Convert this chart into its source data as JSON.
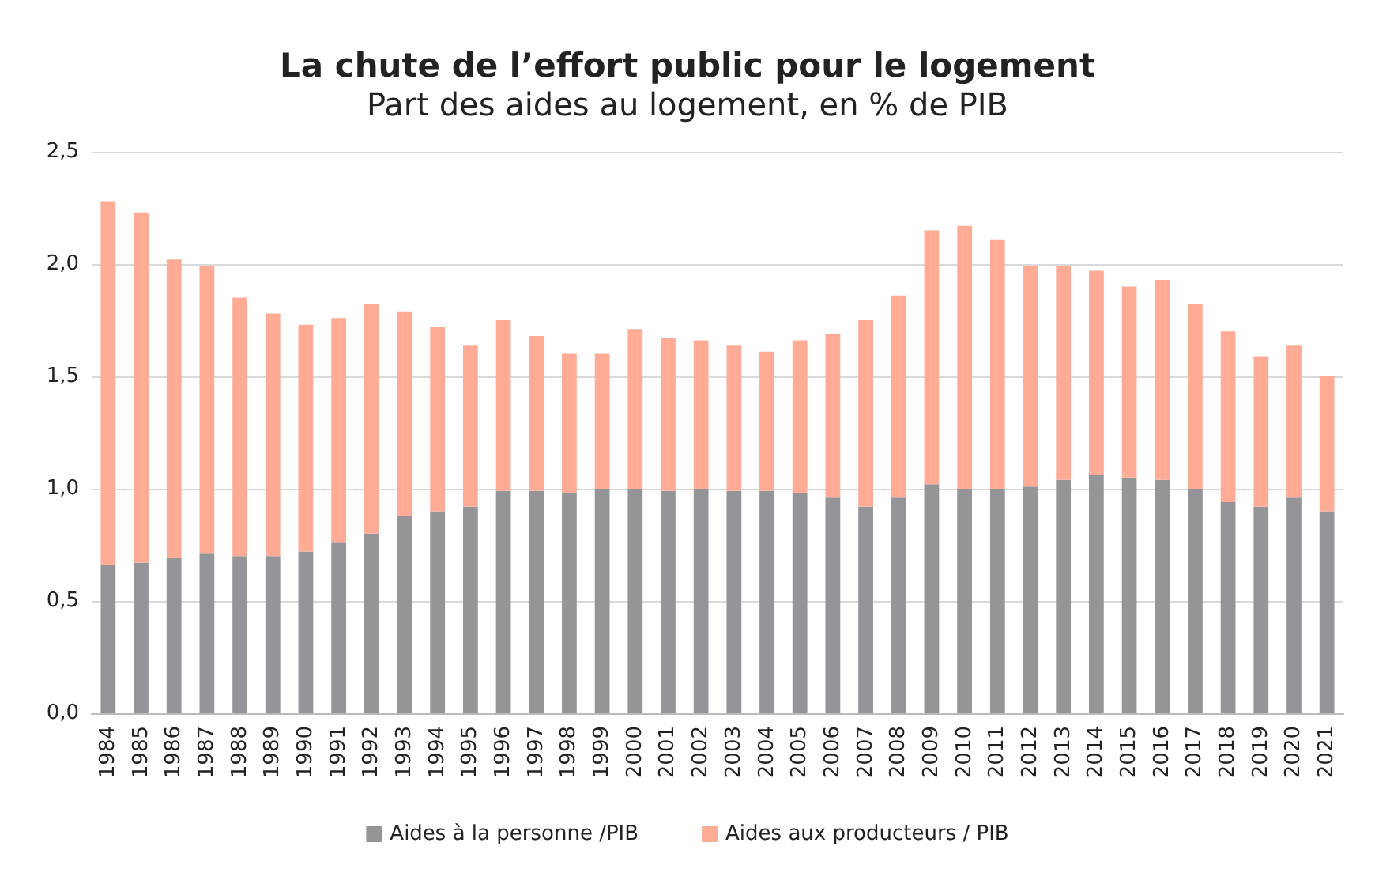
{
  "chart_data": {
    "type": "bar",
    "title": "La chute de l’effort public pour le logement",
    "subtitle": "Part des aides au logement, en % de PIB",
    "categories": [
      "1984",
      "1985",
      "1986",
      "1987",
      "1988",
      "1989",
      "1990",
      "1991",
      "1992",
      "1993",
      "1994",
      "1995",
      "1996",
      "1997",
      "1998",
      "1999",
      "2000",
      "2001",
      "2002",
      "2003",
      "2004",
      "2005",
      "2006",
      "2007",
      "2008",
      "2009",
      "2010",
      "2011",
      "2012",
      "2013",
      "2014",
      "2015",
      "2016",
      "2017",
      "2018",
      "2019",
      "2020",
      "2021"
    ],
    "stacked": true,
    "series": [
      {
        "name": "Aides à la personne /PIB",
        "color": "#939598",
        "values": [
          0.66,
          0.67,
          0.69,
          0.71,
          0.7,
          0.7,
          0.72,
          0.76,
          0.8,
          0.88,
          0.9,
          0.92,
          0.99,
          0.99,
          0.98,
          1.0,
          1.0,
          0.99,
          1.0,
          0.99,
          0.99,
          0.98,
          0.96,
          0.92,
          0.96,
          1.02,
          1.0,
          1.0,
          1.01,
          1.04,
          1.06,
          1.05,
          1.04,
          1.0,
          0.94,
          0.92,
          0.96,
          0.9
        ]
      },
      {
        "name": "Aides aux producteurs / PIB",
        "color": "#ffab96",
        "values": [
          1.62,
          1.56,
          1.33,
          1.28,
          1.15,
          1.08,
          1.01,
          1.0,
          1.02,
          0.91,
          0.82,
          0.72,
          0.76,
          0.69,
          0.62,
          0.6,
          0.71,
          0.68,
          0.66,
          0.65,
          0.62,
          0.68,
          0.73,
          0.83,
          0.9,
          1.13,
          1.17,
          1.11,
          0.98,
          0.95,
          0.91,
          0.85,
          0.89,
          0.82,
          0.76,
          0.67,
          0.68,
          0.6
        ]
      }
    ],
    "ylim": [
      0,
      2.5
    ],
    "yticks": [
      {
        "value": 0,
        "label": "0,0"
      },
      {
        "value": 0.5,
        "label": "0,5"
      },
      {
        "value": 1,
        "label": "1,0"
      },
      {
        "value": 1.5,
        "label": "1,5"
      },
      {
        "value": 2,
        "label": "2,0"
      },
      {
        "value": 2.5,
        "label": "2,5"
      }
    ],
    "grid": "y",
    "legend": "bottom"
  }
}
